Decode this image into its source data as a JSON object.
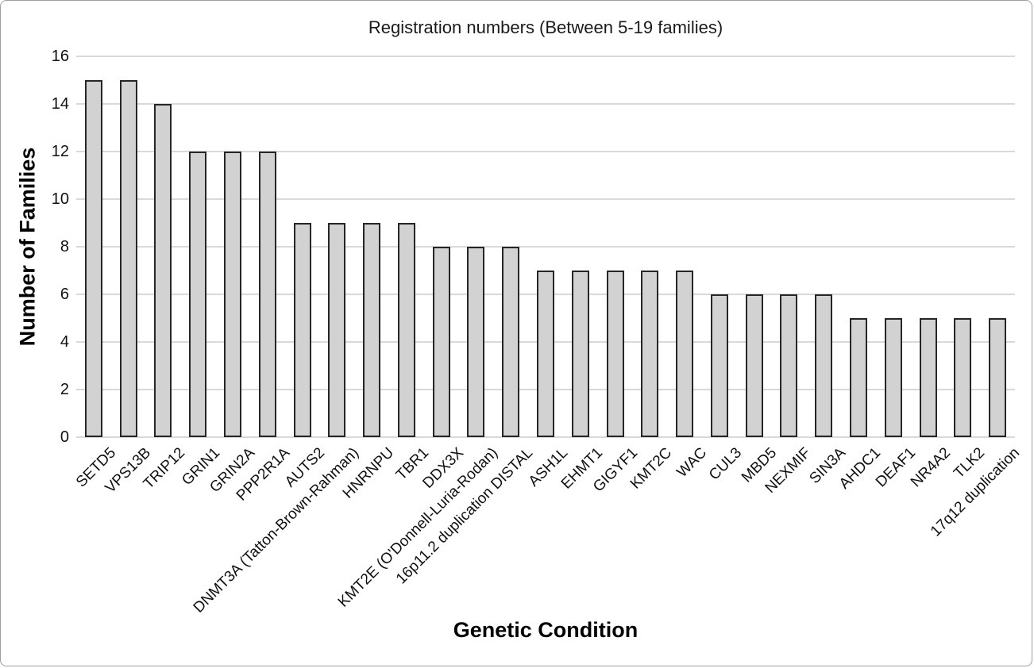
{
  "chart_data": {
    "type": "bar",
    "title": "Registration numbers (Between 5-19 families)",
    "xlabel": "Genetic Condition",
    "ylabel": "Number of Families",
    "ylim": [
      0,
      16
    ],
    "yticks": [
      0,
      2,
      4,
      6,
      8,
      10,
      12,
      14,
      16
    ],
    "grid": true,
    "legend": false,
    "categories": [
      "SETD5",
      "VPS13B",
      "TRIP12",
      "GRIN1",
      "GRIN2A",
      "PPP2R1A",
      "AUTS2",
      "DNMT3A (Tatton-Brown-Rahman)",
      "HNRNPU",
      "TBR1",
      "DDX3X",
      "KMT2E (O'Donnell-Luria-Rodan)",
      "16p11.2 duplication DISTAL",
      "ASH1L",
      "EHMT1",
      "GIGYF1",
      "KMT2C",
      "WAC",
      "CUL3",
      "MBD5",
      "NEXMIF",
      "SIN3A",
      "AHDC1",
      "DEAF1",
      "NR4A2",
      "TLK2",
      "17q12 duplication"
    ],
    "values": [
      15,
      15,
      14,
      12,
      12,
      12,
      9,
      9,
      9,
      9,
      8,
      8,
      8,
      7,
      7,
      7,
      7,
      7,
      6,
      6,
      6,
      6,
      5,
      5,
      5,
      5,
      5
    ],
    "colors": {
      "bar_fill": "#d2d2d2",
      "bar_border": "#262626",
      "gridline": "#d9d9d9",
      "text": "#1a1a1a",
      "frame_border": "#9e9e9e"
    }
  }
}
